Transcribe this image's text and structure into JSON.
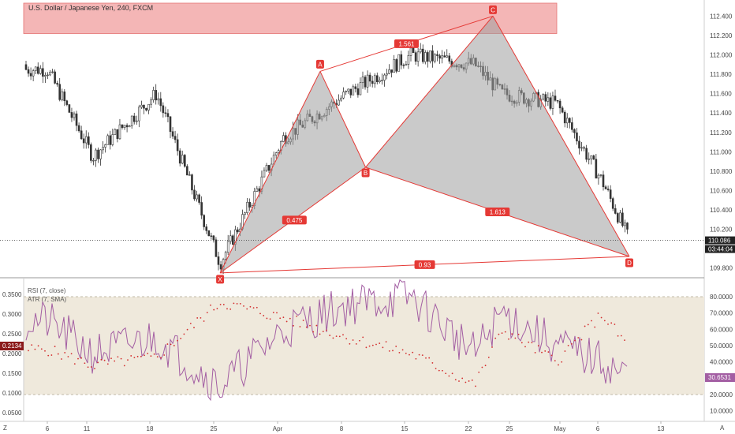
{
  "header": {
    "title": "U.S. Dollar / Japanese Yen, 240, FXCM"
  },
  "price_axis": {
    "ticks": [
      "112.400",
      "112.200",
      "112.000",
      "111.800",
      "111.600",
      "111.400",
      "111.200",
      "111.000",
      "110.800",
      "110.600",
      "110.400",
      "110.200",
      "110.000",
      "109.800"
    ],
    "last_price": "110.086",
    "countdown": "03:44:04"
  },
  "indicator": {
    "rsi_label": "RSI (7, close)",
    "atr_label": "ATR (7, SMA)",
    "left_ticks": [
      "0.3500",
      "0.3000",
      "0.2500",
      "0.2000",
      "0.1500",
      "0.1000",
      "0.0500"
    ],
    "right_ticks": [
      "80.0000",
      "70.0000",
      "60.0000",
      "50.0000",
      "40.0000",
      "30.0000",
      "20.0000",
      "10.0000"
    ],
    "atr_value": "0.2134",
    "rsi_value": "30.6531"
  },
  "time_axis": {
    "labels": [
      "6",
      "11",
      "18",
      "25",
      "Apr",
      "8",
      "15",
      "22",
      "25",
      "May",
      "6",
      "13"
    ],
    "corner_left": "Z",
    "corner_right": "A"
  },
  "pattern": {
    "points": [
      {
        "name": "X",
        "date": "2019-03-25",
        "price": 109.75
      },
      {
        "name": "A",
        "date": "2019-04-05",
        "price": 111.83
      },
      {
        "name": "B",
        "date": "2019-04-10",
        "price": 110.84
      },
      {
        "name": "C",
        "date": "2019-04-24",
        "price": 112.4
      },
      {
        "name": "D",
        "date": "2019-05-09",
        "price": 109.92
      }
    ],
    "ratios": [
      "0.475",
      "1.613",
      "1.561",
      "0.93"
    ]
  },
  "colors": {
    "up": "#333333",
    "down": "#333333",
    "pattern_line": "#e53935",
    "pattern_fill": "#9e9e9e",
    "zone_fill": "#f4b6b6",
    "rsi_line": "#a35ea3",
    "atr_dots": "#d32f2f",
    "rsi_band": "#efe9dc",
    "label_bg": "#e53935"
  },
  "chart_data": [
    {
      "type": "candlestick",
      "title": "U.S. Dollar / Japanese Yen, 240, FXCM",
      "x": [
        "2019-03-06",
        "2019-03-11",
        "2019-03-18",
        "2019-03-25",
        "2019-04-01",
        "2019-04-08",
        "2019-04-15",
        "2019-04-22",
        "2019-04-25",
        "2019-05-01",
        "2019-05-06",
        "2019-05-09"
      ],
      "close": [
        111.85,
        110.95,
        111.6,
        109.85,
        111.15,
        111.6,
        112.0,
        111.9,
        111.6,
        111.5,
        110.7,
        110.09
      ],
      "ylim": [
        109.7,
        112.55
      ],
      "resistance_zone": [
        112.22,
        112.55
      ],
      "last_price": 110.086
    },
    {
      "type": "line",
      "series": [
        {
          "name": "RSI (7, close)",
          "values": [
            65,
            45,
            55,
            25,
            60,
            75,
            80,
            45,
            70,
            50,
            40,
            30.65
          ]
        },
        {
          "name": "ATR (7, SMA)",
          "values": [
            0.21,
            0.17,
            0.19,
            0.33,
            0.29,
            0.24,
            0.2,
            0.12,
            0.26,
            0.18,
            0.3,
            0.2134
          ]
        }
      ],
      "x": [
        "2019-03-06",
        "2019-03-11",
        "2019-03-18",
        "2019-03-25",
        "2019-04-01",
        "2019-04-08",
        "2019-04-15",
        "2019-04-22",
        "2019-04-25",
        "2019-05-01",
        "2019-05-06",
        "2019-05-09"
      ],
      "rsi_band": [
        20,
        80
      ]
    }
  ]
}
